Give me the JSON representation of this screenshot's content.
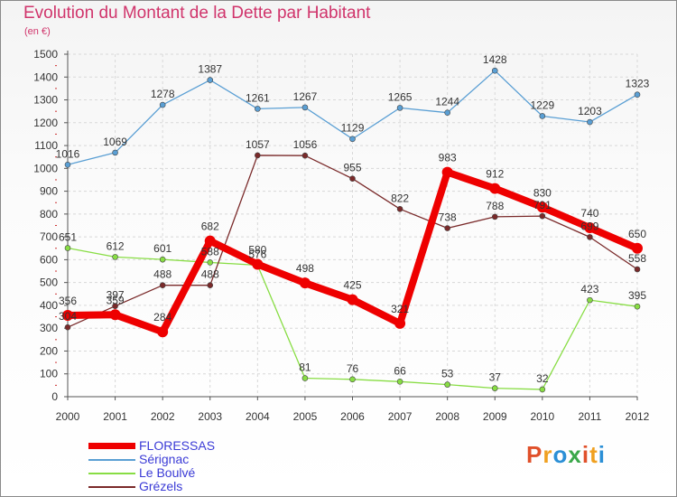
{
  "title": "Evolution du Montant de la Dette par Habitant",
  "unit": "(en €)",
  "logo": {
    "letters": [
      "P",
      "r",
      "o",
      "x",
      "i",
      "t",
      "i"
    ],
    "colors": [
      "#e0502a",
      "#f0a020",
      "#2b8fd6",
      "#3aa84a",
      "#e0502a",
      "#f0a020",
      "#2b8fd6"
    ]
  },
  "chart_data": {
    "type": "line",
    "categories": [
      "2000",
      "2001",
      "2002",
      "2003",
      "2004",
      "2005",
      "2006",
      "2007",
      "2008",
      "2009",
      "2010",
      "2011",
      "2012"
    ],
    "y_ticks": [
      "0",
      "100",
      "200",
      "300",
      "400",
      "500",
      "600",
      "700",
      "800",
      "900",
      "1000",
      "1100",
      "1200",
      "1300",
      "1400",
      "1500"
    ],
    "ylim": [
      0,
      1500
    ],
    "grid": true,
    "legend_position": "bottom-left",
    "series": [
      {
        "name": "FLORESSAS",
        "color": "#ee0000",
        "thick": true,
        "values": [
          356,
          359,
          284,
          682,
          580,
          498,
          425,
          321,
          983,
          912,
          830,
          740,
          650
        ]
      },
      {
        "name": "Sérignac",
        "color": "#5a9fd4",
        "thick": false,
        "values": [
          1016,
          1069,
          1278,
          1387,
          1261,
          1267,
          1129,
          1265,
          1244,
          1428,
          1229,
          1203,
          1323
        ]
      },
      {
        "name": "Le Boulvé",
        "color": "#88dd44",
        "thick": false,
        "values": [
          651,
          612,
          601,
          588,
          576,
          81,
          76,
          66,
          53,
          37,
          32,
          423,
          395
        ]
      },
      {
        "name": "Grézels",
        "color": "#7a2a2a",
        "thick": false,
        "values": [
          304,
          397,
          488,
          488,
          1057,
          1056,
          955,
          822,
          738,
          788,
          791,
          699,
          558
        ]
      }
    ]
  }
}
